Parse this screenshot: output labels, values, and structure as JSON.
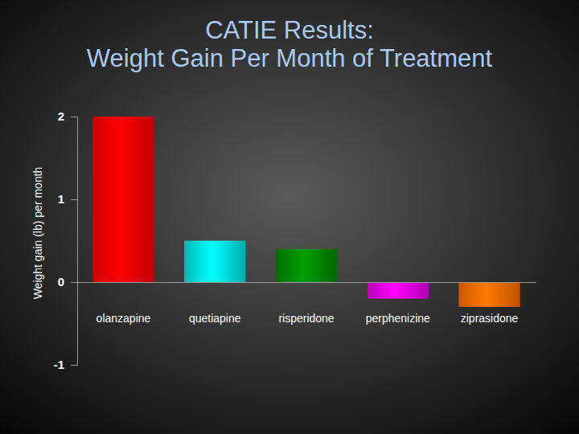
{
  "chart_data": {
    "type": "bar",
    "title": "CATIE Results:\nWeight Gain Per Month of Treatment",
    "y_label": "Weight gain (lb) per month",
    "categories": [
      "olanzapine",
      "quetiapine",
      "risperidone",
      "perphenizine",
      "ziprasidone"
    ],
    "values": [
      2.0,
      0.5,
      0.4,
      -0.2,
      -0.3
    ],
    "colors": [
      "#ff0000",
      "#00e5e5",
      "#008a00",
      "#e600e6",
      "#ff6a00"
    ],
    "ylim": [
      -1,
      2
    ],
    "yticks": [
      -1,
      0,
      1,
      2
    ],
    "grid": false
  }
}
